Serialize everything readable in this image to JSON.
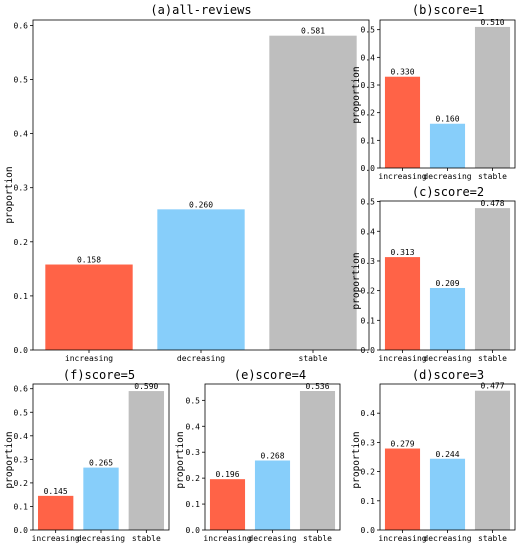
{
  "colors": {
    "increasing": "#FF6347",
    "decreasing": "#87CEFA",
    "stable": "#BEBEBE"
  },
  "chart_data": [
    {
      "type": "bar",
      "title": "(a)all-reviews",
      "ylabel": "proportion",
      "categories": [
        "increasing",
        "decreasing",
        "stable"
      ],
      "values": [
        0.158,
        0.26,
        0.581
      ],
      "value_labels": [
        "0.158",
        "0.260",
        "0.581"
      ],
      "ylim": [
        0,
        0.61
      ],
      "yticks": [
        0,
        0.1,
        0.2,
        0.3,
        0.4,
        0.5,
        0.6
      ],
      "ytick_labels": [
        "0.0",
        "0.1",
        "0.2",
        "0.3",
        "0.4",
        "0.5",
        "0.6"
      ]
    },
    {
      "type": "bar",
      "title": "(b)score=1",
      "ylabel": "proportion",
      "categories": [
        "increasing",
        "decreasing",
        "stable"
      ],
      "values": [
        0.33,
        0.16,
        0.51
      ],
      "value_labels": [
        "0.330",
        "0.160",
        "0.510"
      ],
      "ylim": [
        0,
        0.535
      ],
      "yticks": [
        0,
        0.1,
        0.2,
        0.3,
        0.4,
        0.5
      ],
      "ytick_labels": [
        "0.0",
        "0.1",
        "0.2",
        "0.3",
        "0.4",
        "0.5"
      ]
    },
    {
      "type": "bar",
      "title": "(c)score=2",
      "ylabel": "proportion",
      "categories": [
        "increasing",
        "decreasing",
        "stable"
      ],
      "values": [
        0.313,
        0.209,
        0.478
      ],
      "value_labels": [
        "0.313",
        "0.209",
        "0.478"
      ],
      "ylim": [
        0,
        0.502
      ],
      "yticks": [
        0,
        0.1,
        0.2,
        0.3,
        0.4,
        0.5
      ],
      "ytick_labels": [
        "0.0",
        "0.1",
        "0.2",
        "0.3",
        "0.4",
        "0.5"
      ]
    },
    {
      "type": "bar",
      "title": "(f)score=5",
      "ylabel": "proportion",
      "categories": [
        "increasing",
        "decreasing",
        "stable"
      ],
      "values": [
        0.145,
        0.265,
        0.59
      ],
      "value_labels": [
        "0.145",
        "0.265",
        "0.590"
      ],
      "ylim": [
        0,
        0.62
      ],
      "yticks": [
        0,
        0.1,
        0.2,
        0.3,
        0.4,
        0.5,
        0.6
      ],
      "ytick_labels": [
        "0.0",
        "0.1",
        "0.2",
        "0.3",
        "0.4",
        "0.5",
        "0.6"
      ]
    },
    {
      "type": "bar",
      "title": "(e)score=4",
      "ylabel": "proportion",
      "categories": [
        "increasing",
        "decreasing",
        "stable"
      ],
      "values": [
        0.196,
        0.268,
        0.536
      ],
      "value_labels": [
        "0.196",
        "0.268",
        "0.536"
      ],
      "ylim": [
        0,
        0.563
      ],
      "yticks": [
        0,
        0.1,
        0.2,
        0.3,
        0.4,
        0.5
      ],
      "ytick_labels": [
        "0.0",
        "0.1",
        "0.2",
        "0.3",
        "0.4",
        "0.5"
      ]
    },
    {
      "type": "bar",
      "title": "(d)score=3",
      "ylabel": "proportion",
      "categories": [
        "increasing",
        "decreasing",
        "stable"
      ],
      "values": [
        0.279,
        0.244,
        0.477
      ],
      "value_labels": [
        "0.279",
        "0.244",
        "0.477"
      ],
      "ylim": [
        0,
        0.5
      ],
      "yticks": [
        0,
        0.1,
        0.2,
        0.3,
        0.4
      ],
      "ytick_labels": [
        "0.0",
        "0.1",
        "0.2",
        "0.3",
        "0.4"
      ]
    }
  ]
}
